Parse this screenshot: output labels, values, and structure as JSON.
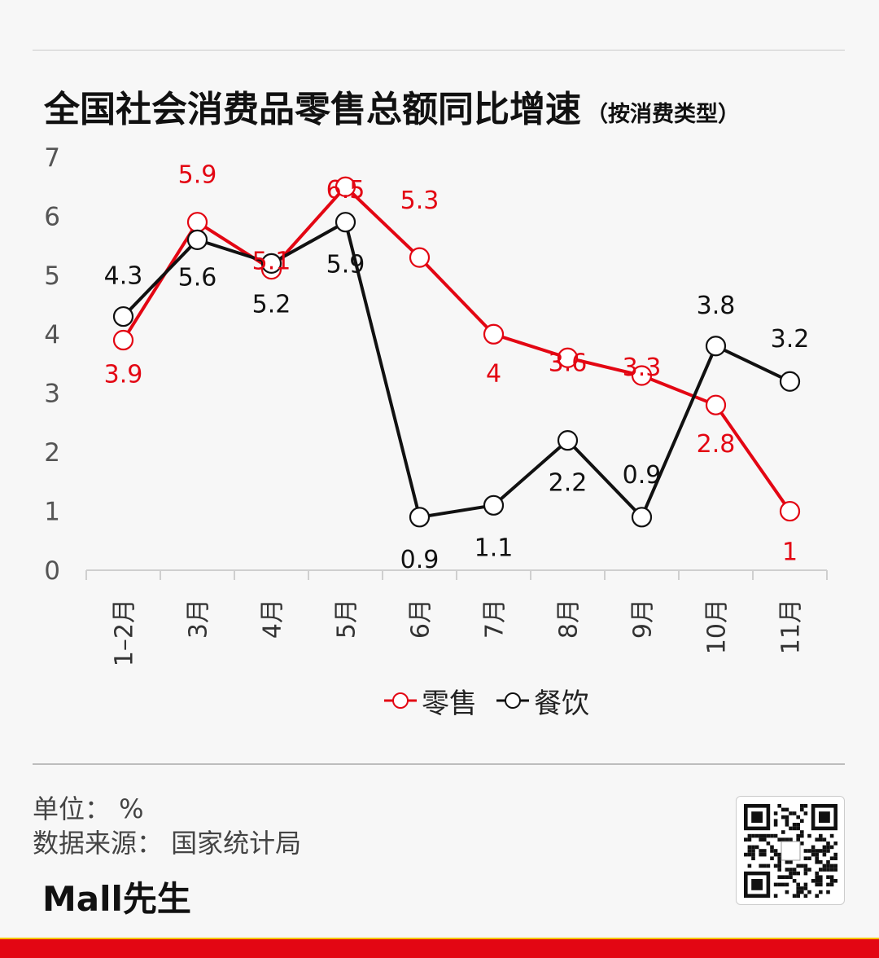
{
  "title": {
    "main": "全国社会消费品零售总额同比增速",
    "sub": "（按消费类型）"
  },
  "chart_data": {
    "type": "line",
    "categories": [
      "1–2月",
      "3月",
      "4月",
      "5月",
      "6月",
      "7月",
      "8月",
      "9月",
      "10月",
      "11月"
    ],
    "ylim": [
      0,
      7
    ],
    "yticks": [
      0,
      1,
      2,
      3,
      4,
      5,
      6,
      7
    ],
    "series": [
      {
        "name": "零售",
        "color": "#e30613",
        "values": [
          3.9,
          5.9,
          5.1,
          6.5,
          5.3,
          4,
          3.6,
          3.3,
          2.8,
          1
        ],
        "labels": [
          "3.9",
          "5.9",
          "5.1",
          "6.5",
          "5.3",
          "4",
          "3.6",
          "3.3",
          "2.8",
          "1"
        ]
      },
      {
        "name": "餐饮",
        "color": "#111111",
        "values": [
          4.3,
          5.6,
          5.2,
          5.9,
          0.9,
          1.1,
          2.2,
          0.9,
          3.8,
          3.2
        ],
        "labels": [
          "4.3",
          "5.6",
          "5.2",
          "5.9",
          "0.9",
          "1.1",
          "2.2",
          "0.9",
          "3.8",
          "3.2"
        ]
      }
    ],
    "xlabel": "",
    "ylabel": "",
    "legend": "bottom-center",
    "grid": false
  },
  "footer": {
    "unit": "单位：  %",
    "source": "数据来源：  国家统计局",
    "brand": "Mall先生"
  },
  "colors": {
    "accent": "#e30613",
    "dark": "#111111",
    "stripe": "#f5c400"
  },
  "icons": {
    "qr": "qr-code-icon"
  }
}
